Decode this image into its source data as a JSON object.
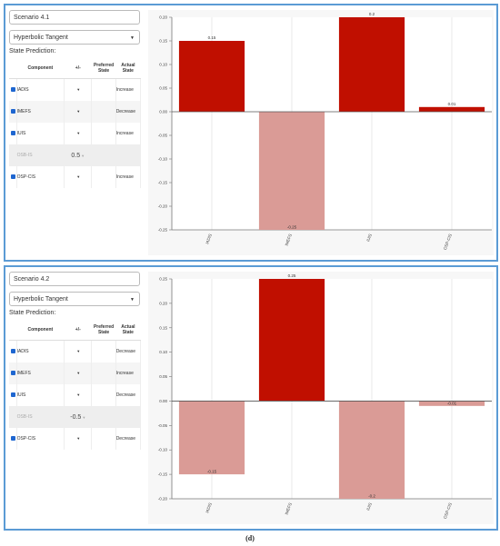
{
  "caption": "(d)",
  "colors": {
    "positive": "#c00f00",
    "negative": "#da9b96",
    "panel_border": "#5b9bd5",
    "checkbox": "#1e66d0"
  },
  "table_headers": {
    "component": "Component",
    "value": "+/-",
    "preferred": "Preferred State",
    "actual": "Actual State"
  },
  "state_prediction_label": "State Prediction:",
  "scenarios": [
    {
      "name": "Scenario 4.1",
      "transfer_function": "Hyperbolic Tangent",
      "components": [
        {
          "label": "IADIS",
          "checked": true,
          "value": "",
          "actual": "Increase"
        },
        {
          "label": "IMEFS",
          "checked": true,
          "value": "",
          "actual": "Decrease"
        },
        {
          "label": "IUIS",
          "checked": true,
          "value": "",
          "actual": "Increase"
        },
        {
          "label": "OSB-IS",
          "checked": false,
          "value": "0.5",
          "actual": ""
        },
        {
          "label": "OSP-CIS",
          "checked": true,
          "value": "",
          "actual": "Increase"
        }
      ],
      "chart_data": {
        "type": "bar",
        "categories": [
          "IADIS",
          "IMEFS",
          "IUIS",
          "OSP-CIS"
        ],
        "values": [
          0.15,
          -0.25,
          0.2,
          0.01
        ],
        "data_labels": [
          "0.15",
          "-0.25",
          "0.2",
          "0.01"
        ],
        "ylim": [
          -0.25,
          0.2
        ],
        "yticks": [
          0.2,
          0.15,
          0.1,
          0.05,
          0.0,
          -0.05,
          -0.1,
          -0.15,
          -0.2,
          -0.25
        ],
        "ytick_labels": [
          "0.20",
          "0.15",
          "0.10",
          "0.05",
          "0.00",
          "-0.05",
          "-0.10",
          "-0.15",
          "-0.20",
          "-0.25"
        ],
        "title": "",
        "xlabel": "",
        "ylabel": ""
      }
    },
    {
      "name": "Scenario 4.2",
      "transfer_function": "Hyperbolic Tangent",
      "components": [
        {
          "label": "IADIS",
          "checked": true,
          "value": "",
          "actual": "Decrease"
        },
        {
          "label": "IMEFS",
          "checked": true,
          "value": "",
          "actual": "Increase"
        },
        {
          "label": "IUIS",
          "checked": true,
          "value": "",
          "actual": "Decrease"
        },
        {
          "label": "OSB-IS",
          "checked": false,
          "value": "-0.5",
          "actual": ""
        },
        {
          "label": "OSP-CIS",
          "checked": true,
          "value": "",
          "actual": "Decrease"
        }
      ],
      "chart_data": {
        "type": "bar",
        "categories": [
          "IADIS",
          "IMEFS",
          "IUIS",
          "OSP-CIS"
        ],
        "values": [
          -0.15,
          0.25,
          -0.2,
          -0.01
        ],
        "data_labels": [
          "-0.15",
          "0.25",
          "-0.2",
          "-0.01"
        ],
        "ylim": [
          -0.2,
          0.25
        ],
        "yticks": [
          0.25,
          0.2,
          0.15,
          0.1,
          0.05,
          0.0,
          -0.05,
          -0.1,
          -0.15,
          -0.2
        ],
        "ytick_labels": [
          "0.25",
          "0.20",
          "0.15",
          "0.10",
          "0.05",
          "0.00",
          "-0.05",
          "-0.10",
          "-0.15",
          "-0.20"
        ],
        "title": "",
        "xlabel": "",
        "ylabel": ""
      }
    }
  ]
}
